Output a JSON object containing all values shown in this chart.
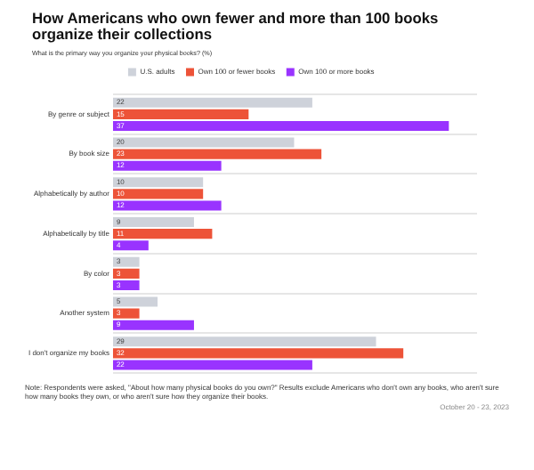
{
  "chart_data": {
    "type": "bar",
    "orientation": "horizontal",
    "title": "How Americans who own fewer and more than 100 books organize their collections",
    "subtitle": "What is the primary way you organize your physical books? (%)",
    "categories": [
      "By genre or subject",
      "By book size",
      "Alphabetically by author",
      "Alphabetically by title",
      "By color",
      "Another system",
      "I don't organize my books"
    ],
    "series": [
      {
        "name": "U.S. adults",
        "color": "#ced2da",
        "values": [
          22,
          20,
          10,
          9,
          3,
          5,
          29
        ]
      },
      {
        "name": "Own 100 or fewer books",
        "color": "#ed5338",
        "values": [
          15,
          23,
          10,
          11,
          3,
          3,
          32
        ]
      },
      {
        "name": "Own 100 or more books",
        "color": "#9933ff",
        "values": [
          37,
          12,
          12,
          4,
          3,
          9,
          22
        ]
      }
    ],
    "data_labels": true,
    "legend": "top",
    "grid": "y",
    "annotations": [
      "Note: Respondents were asked, \"About how many physical books do you own?\" Results exclude Americans who don't own any books, who aren't sure how many books they own, or who aren't sure how they organize their books.",
      "October 20 - 23, 2023"
    ]
  }
}
